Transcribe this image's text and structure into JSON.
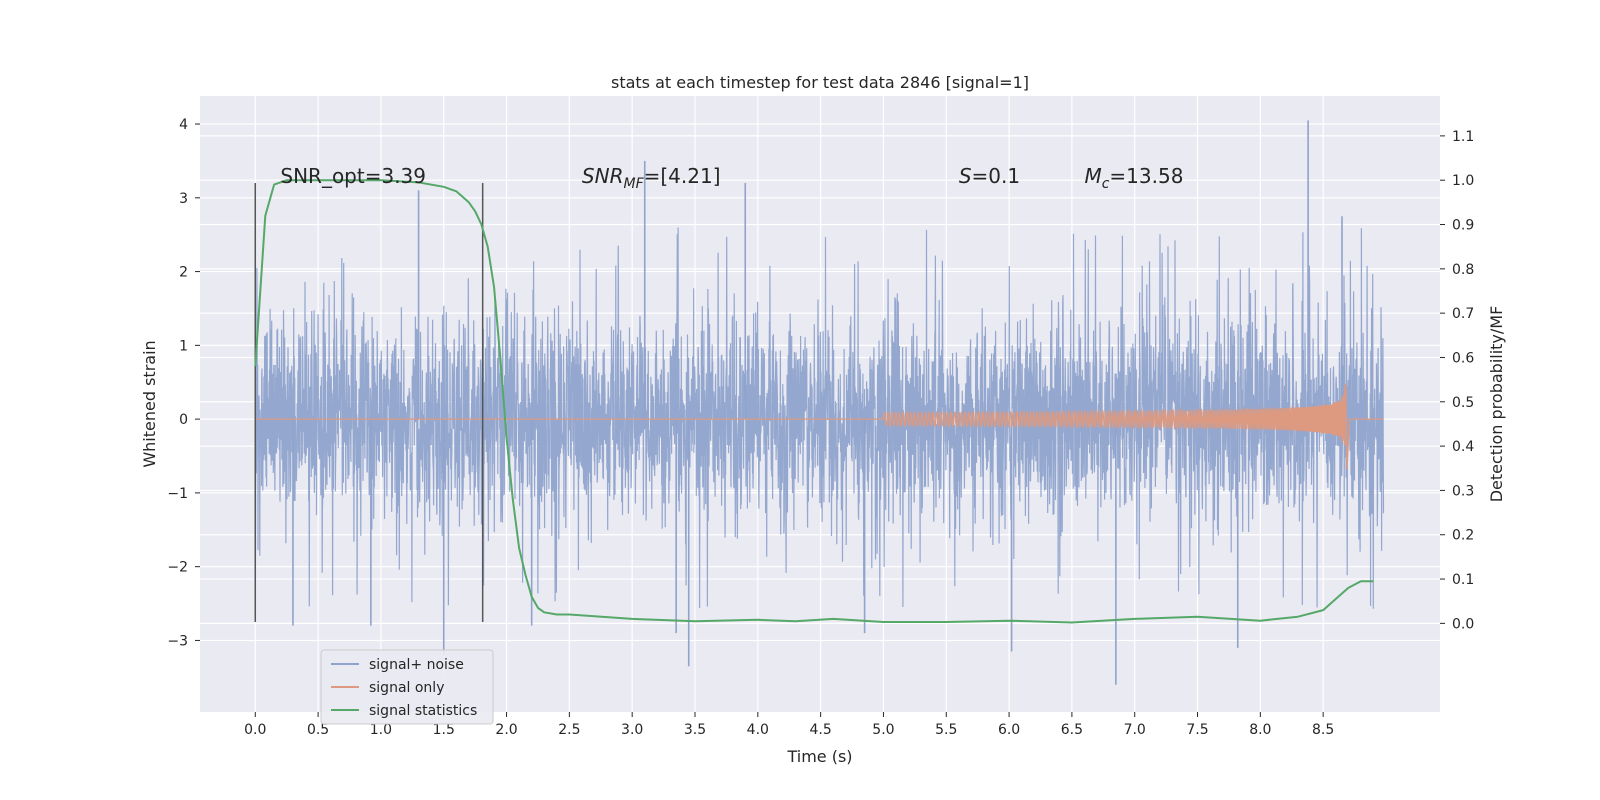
{
  "chart_data": {
    "type": "line",
    "title": "stats at each timestep for test data 2846 [signal=1]",
    "xlabel": "Time (s)",
    "ylabel_left": "Whitened strain",
    "ylabel_right": "Detection probability/MF",
    "xlim": [
      -0.44,
      9.43
    ],
    "ylim_left": [
      -3.97,
      4.38
    ],
    "ylim_right": [
      -0.2,
      1.19
    ],
    "x_ticks": [
      0.0,
      0.5,
      1.0,
      1.5,
      2.0,
      2.5,
      3.0,
      3.5,
      4.0,
      4.5,
      5.0,
      5.5,
      6.0,
      6.5,
      7.0,
      7.5,
      8.0,
      8.5
    ],
    "x_tick_labels": [
      "0.0",
      "0.5",
      "1.0",
      "1.5",
      "2.0",
      "2.5",
      "3.0",
      "3.5",
      "4.0",
      "4.5",
      "5.0",
      "5.5",
      "6.0",
      "6.5",
      "7.0",
      "7.5",
      "8.0",
      "8.5"
    ],
    "y_left_ticks": [
      -3,
      -2,
      -1,
      0,
      1,
      2,
      3,
      4
    ],
    "y_left_tick_labels": [
      "−3",
      "−2",
      "−1",
      "0",
      "1",
      "2",
      "3",
      "4"
    ],
    "y_right_ticks": [
      0.0,
      0.1,
      0.2,
      0.3,
      0.4,
      0.5,
      0.6,
      0.7,
      0.8,
      0.9,
      1.0,
      1.1
    ],
    "y_right_tick_labels": [
      "0.0",
      "0.1",
      "0.2",
      "0.3",
      "0.4",
      "0.5",
      "0.6",
      "0.7",
      "0.8",
      "0.9",
      "1.0",
      "1.1"
    ],
    "grid": true,
    "legend_position": "bottom-left",
    "annotations": [
      {
        "id": "snr-opt",
        "text": "SNR_opt=3.39",
        "x": 0.2,
        "y": 3.2
      },
      {
        "id": "snr-mf",
        "text": "SNR",
        "sub": "MF",
        "rest": "=[4.21]",
        "italic": true,
        "x": 2.6,
        "y": 3.2
      },
      {
        "id": "s-val",
        "text": "S",
        "rest": "=0.1",
        "italic": true,
        "x": 5.6,
        "y": 3.2
      },
      {
        "id": "mc-val",
        "text": "M",
        "sub": "c",
        "rest": "=13.58",
        "italic": true,
        "x": 6.6,
        "y": 3.2
      }
    ],
    "vlines": [
      {
        "x": 0.0,
        "ymin": -2.75,
        "ymax": 3.2
      },
      {
        "x": 1.81,
        "ymin": -2.75,
        "ymax": 3.2
      }
    ],
    "series": [
      {
        "name": "signal+ noise",
        "color": "#8fa3cc",
        "axis": "left",
        "x_range": [
          0.0,
          8.98
        ],
        "typical_envelope": [
          -1.2,
          1.2
        ],
        "spikes": [
          {
            "x": 1.3,
            "y": 3.1
          },
          {
            "x": 1.5,
            "y": -3.2
          },
          {
            "x": 3.1,
            "y": 3.5
          },
          {
            "x": 3.35,
            "y": -2.9
          },
          {
            "x": 3.45,
            "y": -3.35
          },
          {
            "x": 3.9,
            "y": 3.2
          },
          {
            "x": 6.02,
            "y": -3.15
          },
          {
            "x": 6.85,
            "y": -3.6
          },
          {
            "x": 7.82,
            "y": -3.1
          },
          {
            "x": 8.38,
            "y": 4.05
          },
          {
            "x": 8.65,
            "y": 2.75
          },
          {
            "x": 0.92,
            "y": -2.8
          },
          {
            "x": 0.3,
            "y": -2.8
          },
          {
            "x": 4.85,
            "y": -2.9
          },
          {
            "x": 2.2,
            "y": -2.8
          }
        ]
      },
      {
        "name": "signal only",
        "color": "#dd9a80",
        "axis": "left",
        "chirp": {
          "start": 5.0,
          "merger": 8.68,
          "end": 8.98,
          "peak_amplitude": 0.5
        }
      },
      {
        "name": "signal statistics",
        "color": "#55a868",
        "axis": "right",
        "x": [
          0.0,
          0.08,
          0.15,
          0.25,
          0.4,
          0.7,
          1.0,
          1.3,
          1.5,
          1.6,
          1.7,
          1.75,
          1.8,
          1.85,
          1.9,
          1.95,
          2.0,
          2.05,
          2.1,
          2.15,
          2.2,
          2.25,
          2.3,
          2.4,
          2.5,
          3.0,
          3.5,
          4.0,
          4.3,
          4.6,
          5.0,
          5.5,
          6.0,
          6.5,
          7.0,
          7.5,
          8.0,
          8.3,
          8.5,
          8.6,
          8.7,
          8.8,
          8.9
        ],
        "y": [
          0.58,
          0.92,
          0.99,
          1.0,
          1.0,
          1.0,
          1.0,
          0.995,
          0.985,
          0.975,
          0.95,
          0.93,
          0.9,
          0.85,
          0.76,
          0.6,
          0.42,
          0.28,
          0.17,
          0.11,
          0.06,
          0.035,
          0.025,
          0.02,
          0.02,
          0.01,
          0.005,
          0.008,
          0.005,
          0.01,
          0.003,
          0.003,
          0.006,
          0.002,
          0.01,
          0.015,
          0.006,
          0.015,
          0.03,
          0.055,
          0.08,
          0.095,
          0.095
        ]
      }
    ]
  }
}
